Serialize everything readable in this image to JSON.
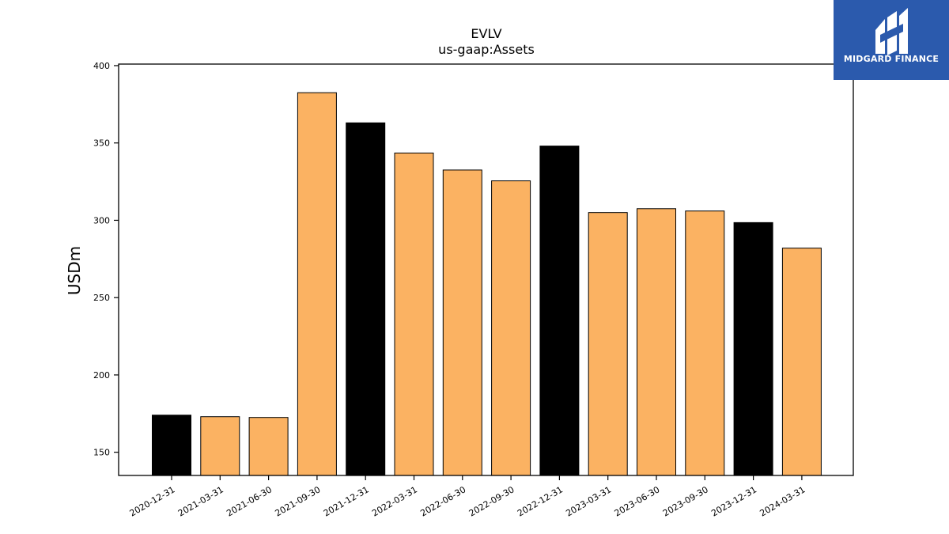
{
  "logo": {
    "text": "MIDGARD FINANCE"
  },
  "colors": {
    "orange": "#fbb262",
    "black": "#000000",
    "logo_bg": "#2b5aad"
  },
  "chart_data": {
    "type": "bar",
    "title": "EVLV",
    "subtitle": "us-gaap:Assets",
    "xlabel": "",
    "ylabel": "USDm",
    "ylim": [
      135,
      401
    ],
    "yticks": [
      150,
      200,
      250,
      300,
      350,
      400
    ],
    "grid": false,
    "categories": [
      "2020-12-31",
      "2021-03-31",
      "2021-06-30",
      "2021-09-30",
      "2021-12-31",
      "2022-03-31",
      "2022-06-30",
      "2022-09-30",
      "2022-12-31",
      "2023-03-31",
      "2023-06-30",
      "2023-09-30",
      "2023-12-31",
      "2024-03-31"
    ],
    "values": [
      174,
      173,
      172.5,
      382.5,
      363,
      343.5,
      332.5,
      325.5,
      348,
      305,
      307.5,
      306,
      298.5,
      282
    ],
    "bar_colors": [
      "black",
      "orange",
      "orange",
      "orange",
      "black",
      "orange",
      "orange",
      "orange",
      "black",
      "orange",
      "orange",
      "orange",
      "black",
      "orange"
    ]
  }
}
